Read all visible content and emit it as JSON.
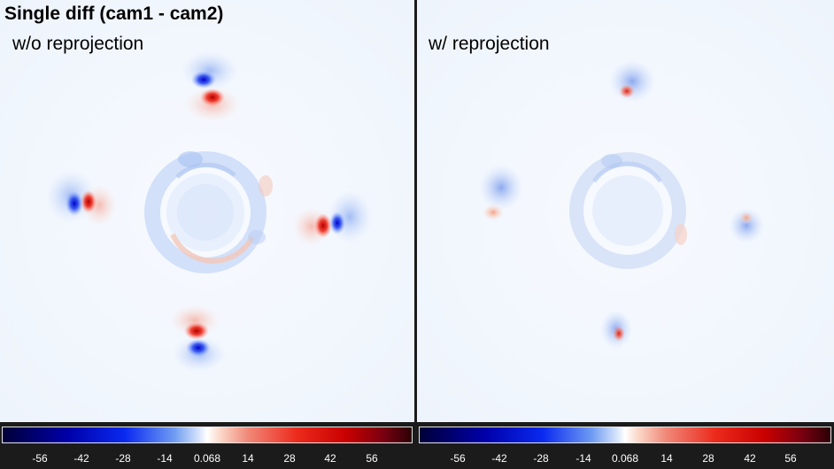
{
  "header": {
    "title": "Single diff (cam1 - cam2)"
  },
  "panels": [
    {
      "label": "w/o reprojection"
    },
    {
      "label": "w/ reprojection"
    }
  ],
  "colorbar": {
    "ticks": [
      "-56",
      "-42",
      "-28",
      "-14",
      "0.068",
      "14",
      "28",
      "42",
      "56"
    ],
    "colormap": "seismic",
    "negative_color": "#0000ff",
    "positive_color": "#e00000",
    "zero_color": "#ffffff"
  }
}
